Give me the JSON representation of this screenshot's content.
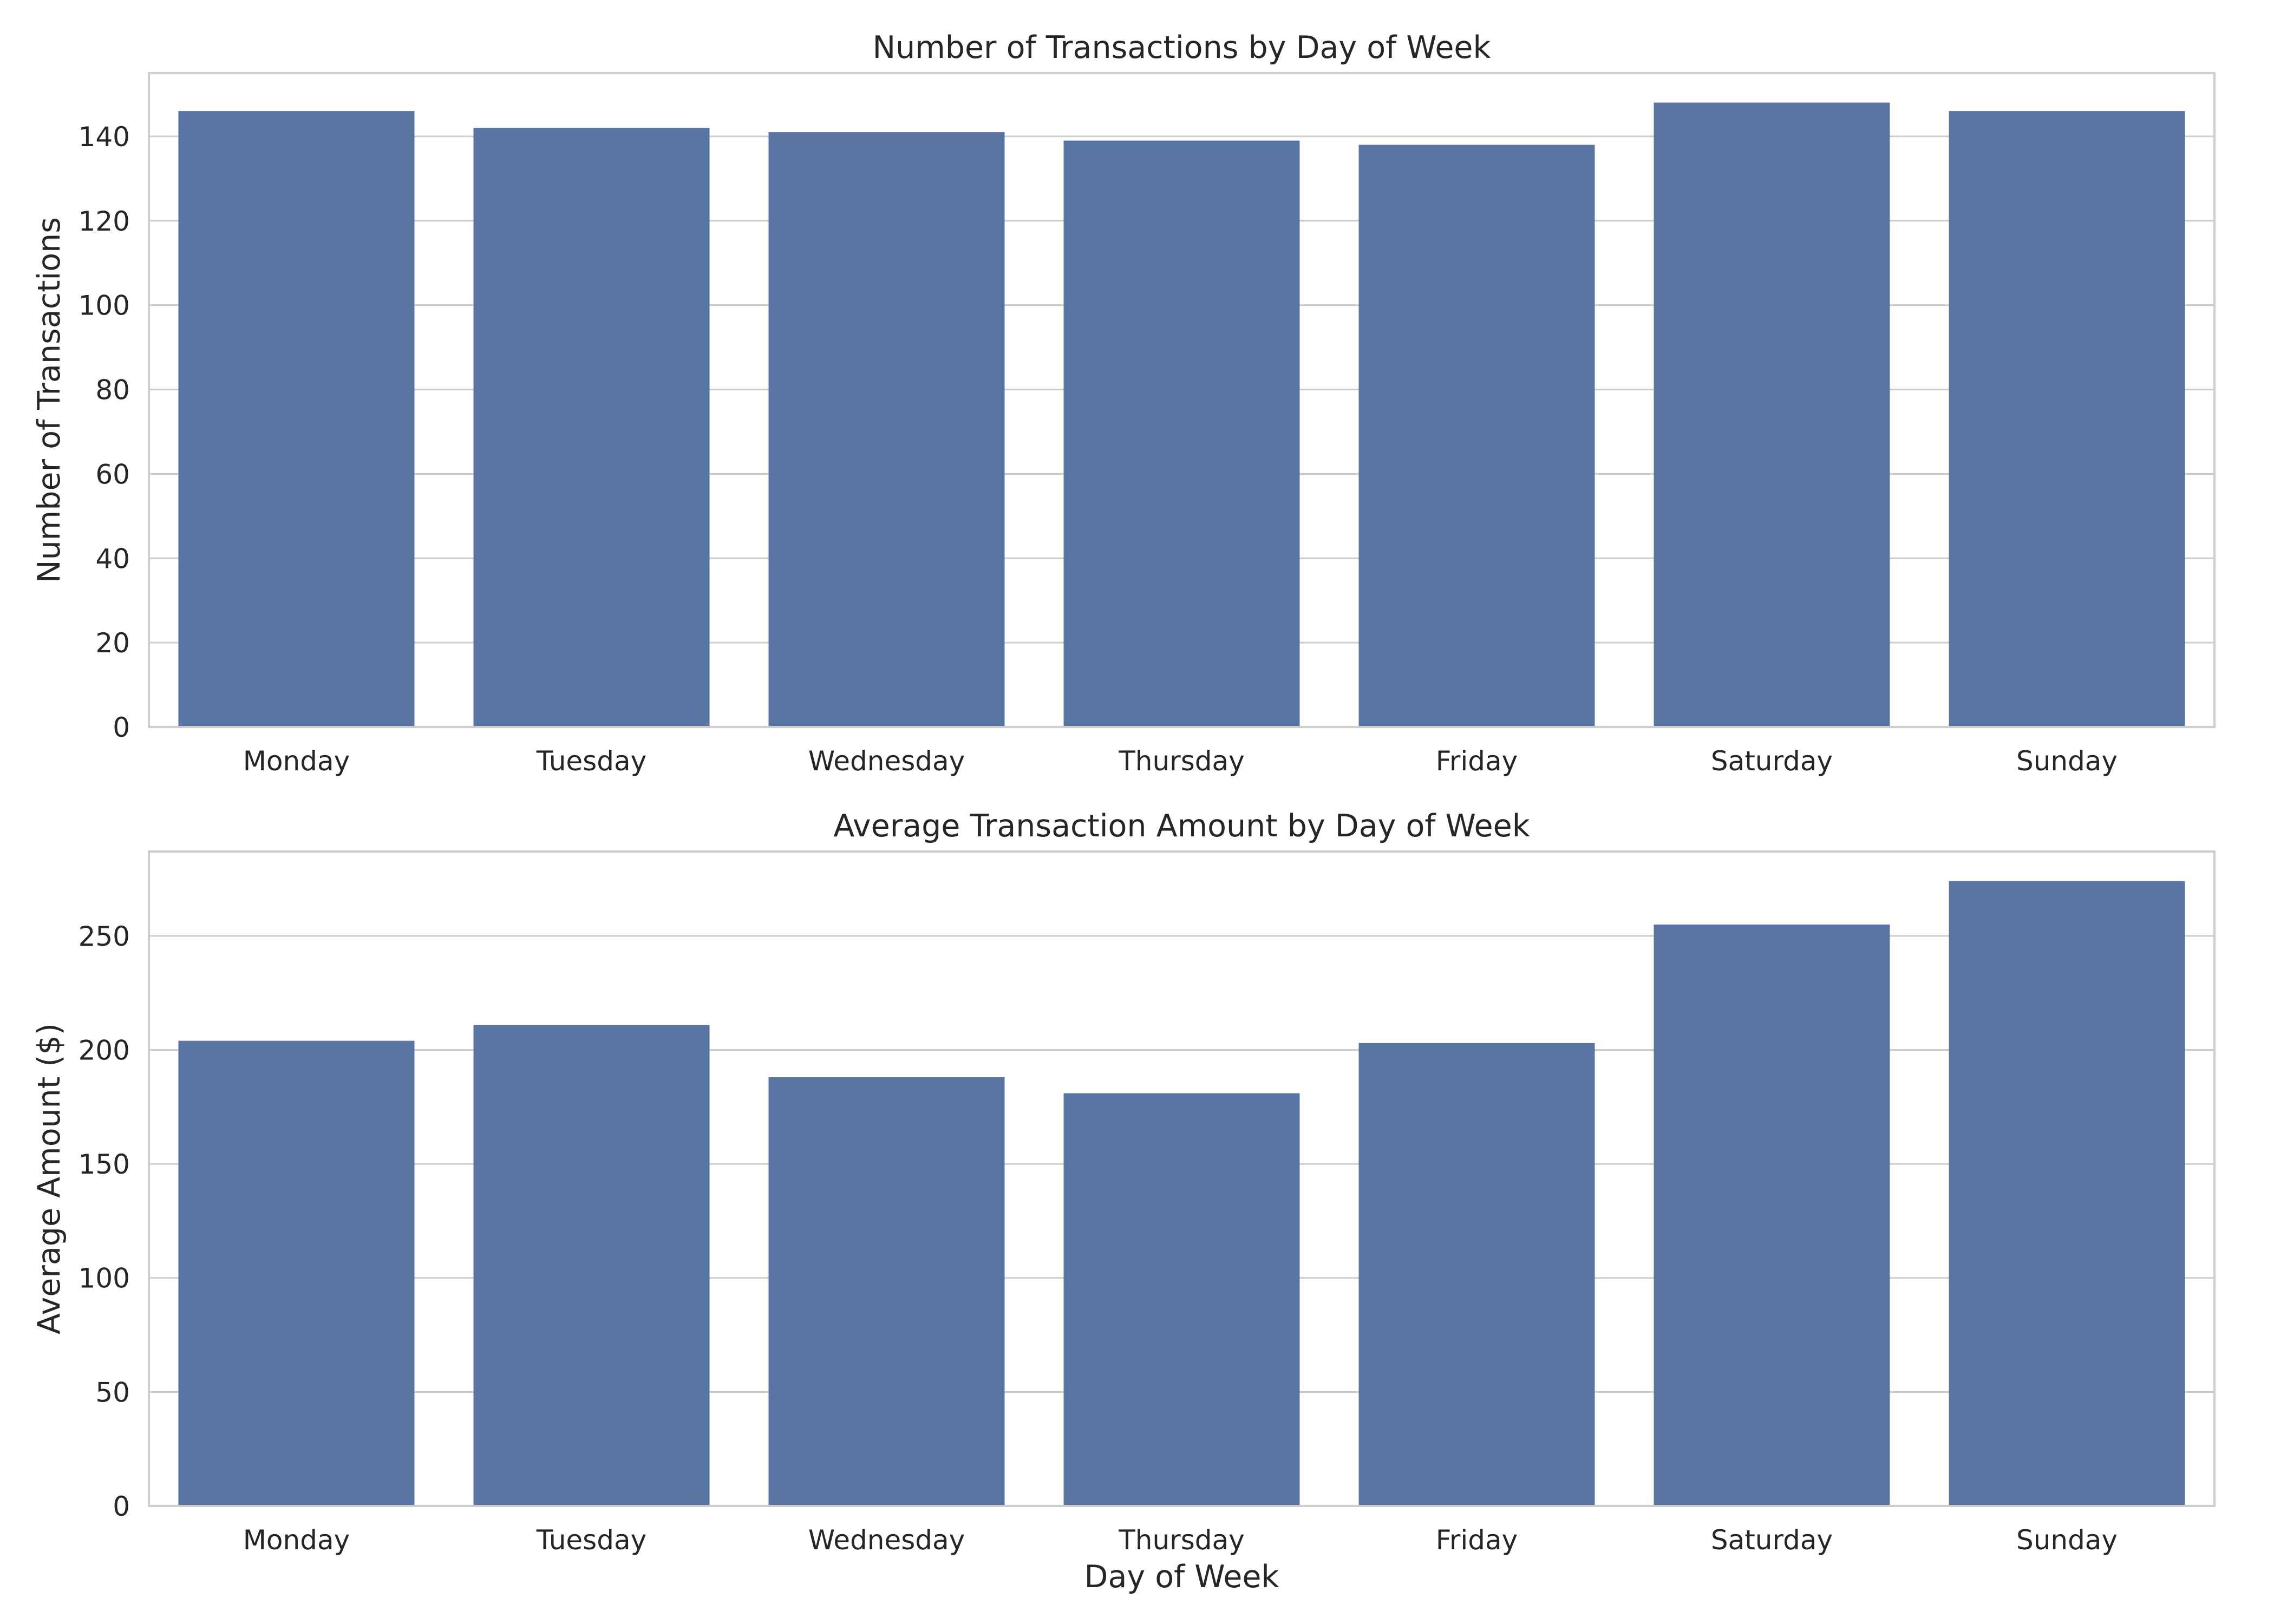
{
  "colors": {
    "bar": "#5975a4",
    "grid": "#cccccc",
    "text": "#262626",
    "background": "#ffffff"
  },
  "chart_data": [
    {
      "type": "bar",
      "title": "Number of Transactions by Day of Week",
      "xlabel": "",
      "ylabel": "Number of Transactions",
      "categories": [
        "Monday",
        "Tuesday",
        "Wednesday",
        "Thursday",
        "Friday",
        "Saturday",
        "Sunday"
      ],
      "values": [
        146,
        142,
        141,
        139,
        138,
        148,
        146
      ],
      "ylim": [
        0,
        155
      ],
      "yticks": [
        0,
        20,
        40,
        60,
        80,
        100,
        120,
        140
      ],
      "grid": true,
      "legend": "none"
    },
    {
      "type": "bar",
      "title": "Average Transaction Amount by Day of Week",
      "xlabel": "Day of Week",
      "ylabel": "Average Amount ($)",
      "categories": [
        "Monday",
        "Tuesday",
        "Wednesday",
        "Thursday",
        "Friday",
        "Saturday",
        "Sunday"
      ],
      "values": [
        204,
        211,
        188,
        181,
        203,
        255,
        274
      ],
      "ylim": [
        0,
        287
      ],
      "yticks": [
        0,
        50,
        100,
        150,
        200,
        250
      ],
      "grid": true,
      "legend": "none"
    }
  ]
}
